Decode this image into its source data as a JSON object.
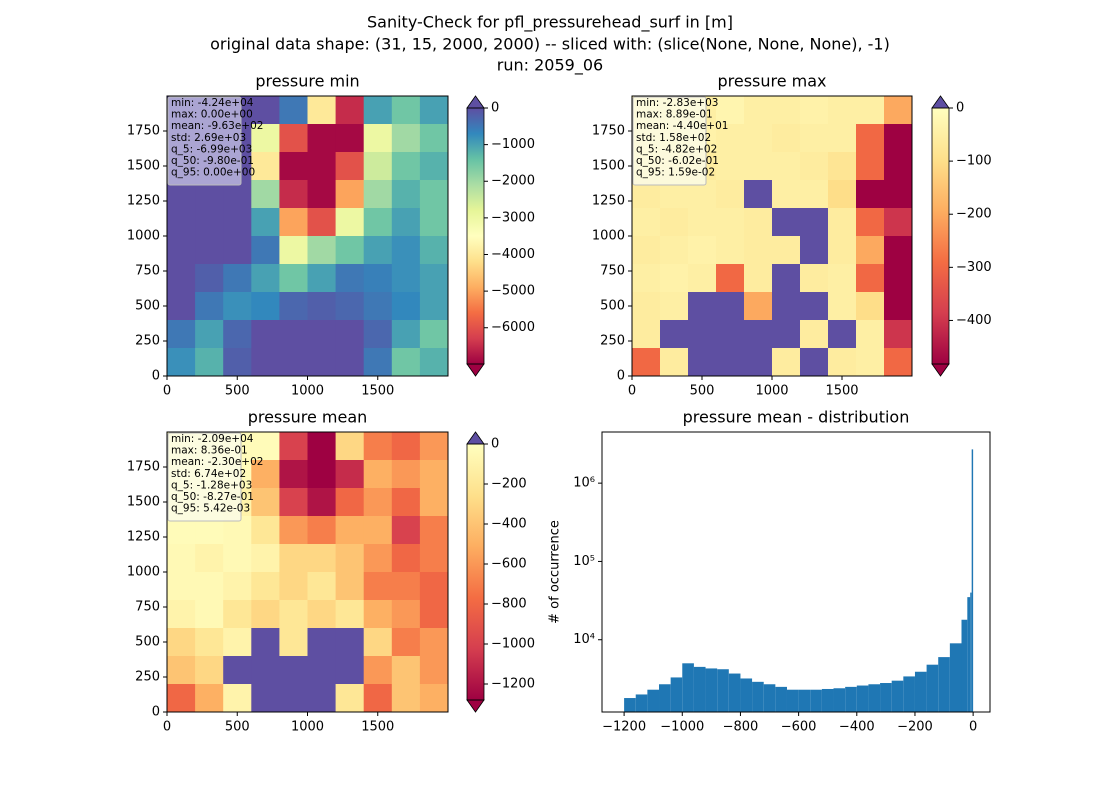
{
  "figure": {
    "title_lines": [
      "Sanity-Check for pfl_pressurehead_surf in [m]",
      "original data shape: (31, 15, 2000, 2000) -- sliced with: (slice(None, None, None), -1)",
      "run: 2059_06"
    ]
  },
  "chart_data": [
    {
      "type": "heatmap",
      "title": "pressure min",
      "values": [
        [
          0,
          0,
          0,
          0,
          -500,
          -4000,
          -6500,
          -1000,
          -1500,
          -1000
        ],
        [
          0,
          0,
          0,
          -3000,
          -6000,
          -6900,
          -6900,
          -3000,
          -2000,
          -1500
        ],
        [
          0,
          0,
          0,
          -4000,
          -6900,
          -6900,
          -6000,
          -2500,
          -1500,
          -1200
        ],
        [
          0,
          0,
          0,
          -2000,
          -6500,
          -6900,
          -5000,
          -2000,
          -1200,
          -1500
        ],
        [
          0,
          0,
          0,
          -1000,
          -5000,
          -6000,
          -3000,
          -1500,
          -1000,
          -1500
        ],
        [
          0,
          0,
          0,
          -500,
          -3000,
          -2000,
          -1500,
          -1000,
          -800,
          -1200
        ],
        [
          0,
          -200,
          -500,
          -1000,
          -1500,
          -1000,
          -500,
          -600,
          -800,
          -1000
        ],
        [
          0,
          -500,
          -800,
          -700,
          -300,
          -200,
          -300,
          -500,
          -700,
          -1000
        ],
        [
          -500,
          -1000,
          -300,
          0,
          0,
          0,
          0,
          -300,
          -1000,
          -1500
        ],
        [
          -800,
          -1200,
          -200,
          0,
          0,
          0,
          0,
          -500,
          -1500,
          -1200
        ]
      ],
      "xlim": [
        0,
        2000
      ],
      "ylim": [
        0,
        2000
      ],
      "xticks": [
        0,
        500,
        1000,
        1500
      ],
      "yticks": [
        0,
        250,
        500,
        750,
        1000,
        1250,
        1500,
        1750
      ],
      "clim": [
        -6990,
        0
      ],
      "colormap": [
        "#9e0142",
        "#d53e4f",
        "#f46d43",
        "#fdae61",
        "#fee08b",
        "#ffffbf",
        "#e6f598",
        "#abdda4",
        "#66c2a5",
        "#3288bd",
        "#5e4fa2"
      ],
      "over_color": "#5e4fa2",
      "under_color": "#9e0142",
      "cticks": [
        0,
        {
          "value": -1000,
          "label": "−1000"
        },
        {
          "value": -2000,
          "label": "−2000"
        },
        {
          "value": -3000,
          "label": "−3000"
        },
        {
          "value": -4000,
          "label": "−4000"
        },
        {
          "value": -5000,
          "label": "−5000"
        },
        {
          "value": -6000,
          "label": "−6000"
        }
      ],
      "stats": [
        "min: -4.24e+04",
        "max: 0.00e+00",
        "mean: -9.63e+02",
        "std: 2.69e+03",
        "q_5: -6.99e+03",
        "q_50: -9.80e-01",
        "q_95: 0.00e+00"
      ],
      "stats_bg": "#b8b4dc"
    },
    {
      "type": "heatmap",
      "title": "pressure max",
      "values": [
        [
          -50,
          -50,
          -50,
          -30,
          -50,
          -50,
          -40,
          -50,
          -50,
          -200
        ],
        [
          -50,
          -50,
          -40,
          -50,
          -50,
          -60,
          -50,
          -50,
          -300,
          -482
        ],
        [
          -50,
          -60,
          -60,
          -50,
          -50,
          -50,
          -60,
          -80,
          -300,
          -482
        ],
        [
          -60,
          -50,
          -50,
          -60,
          5,
          -50,
          -50,
          -100,
          -482,
          -482
        ],
        [
          -50,
          -60,
          -50,
          -50,
          -60,
          5,
          5,
          -60,
          -300,
          -400
        ],
        [
          -60,
          -50,
          -40,
          -50,
          -60,
          -60,
          5,
          -60,
          -200,
          -482
        ],
        [
          -50,
          -40,
          -50,
          -300,
          -60,
          5,
          -60,
          -50,
          -300,
          -482
        ],
        [
          -60,
          -50,
          5,
          5,
          -200,
          5,
          5,
          -50,
          -100,
          -482
        ],
        [
          -60,
          5,
          5,
          5,
          5,
          5,
          -60,
          5,
          -50,
          -400
        ],
        [
          -300,
          -60,
          5,
          5,
          5,
          -60,
          5,
          -60,
          -50,
          -300
        ]
      ],
      "xlim": [
        0,
        2000
      ],
      "ylim": [
        0,
        2000
      ],
      "xticks": [
        0,
        500,
        1000,
        1500
      ],
      "yticks": [
        0,
        250,
        500,
        750,
        1000,
        1250,
        1500,
        1750
      ],
      "clim": [
        -482,
        0
      ],
      "colormap": [
        "#9e0142",
        "#d53e4f",
        "#f46d43",
        "#fdae61",
        "#fee08b",
        "#ffffbf"
      ],
      "over_color": "#5e4fa2",
      "under_color": "#9e0142",
      "cticks": [
        0,
        {
          "value": -100,
          "label": "−100"
        },
        {
          "value": -200,
          "label": "−200"
        },
        {
          "value": -300,
          "label": "−300"
        },
        {
          "value": -400,
          "label": "−400"
        }
      ],
      "stats": [
        "min: -2.83e+03",
        "max: 8.89e-01",
        "mean: -4.40e+01",
        "std: 1.58e+02",
        "q_5: -4.82e+02",
        "q_50: -6.02e-01",
        "q_95: 1.59e-02"
      ],
      "stats_bg": "#fbfbe6"
    },
    {
      "type": "heatmap",
      "title": "pressure mean",
      "values": [
        [
          -30,
          -30,
          -30,
          -30,
          -1000,
          -1280,
          -300,
          -700,
          -800,
          -600
        ],
        [
          -30,
          -30,
          -30,
          -500,
          -1200,
          -1280,
          -1100,
          -500,
          -600,
          -500
        ],
        [
          -30,
          -30,
          -100,
          -400,
          -1000,
          -1200,
          -800,
          -600,
          -800,
          -500
        ],
        [
          -30,
          -30,
          -50,
          -200,
          -600,
          -700,
          -500,
          -500,
          -1000,
          -700
        ],
        [
          -50,
          -100,
          -50,
          -100,
          -300,
          -300,
          -400,
          -600,
          -800,
          -700
        ],
        [
          -50,
          -50,
          -100,
          -200,
          -300,
          -200,
          -400,
          -700,
          -700,
          -800
        ],
        [
          -100,
          -50,
          -200,
          -300,
          -200,
          -300,
          -200,
          -500,
          -600,
          -800
        ],
        [
          -300,
          -200,
          -100,
          5,
          -200,
          5,
          5,
          -300,
          -700,
          -600
        ],
        [
          -400,
          -300,
          5,
          5,
          5,
          5,
          5,
          -600,
          -400,
          -600
        ],
        [
          -800,
          -500,
          -100,
          5,
          5,
          5,
          -200,
          -800,
          -400,
          -500
        ]
      ],
      "xlim": [
        0,
        2000
      ],
      "ylim": [
        0,
        2000
      ],
      "xticks": [
        0,
        500,
        1000,
        1500
      ],
      "yticks": [
        0,
        250,
        500,
        750,
        1000,
        1250,
        1500,
        1750
      ],
      "clim": [
        -1280,
        0
      ],
      "colormap": [
        "#9e0142",
        "#d53e4f",
        "#f46d43",
        "#fdae61",
        "#fee08b",
        "#ffffbf"
      ],
      "over_color": "#5e4fa2",
      "under_color": "#9e0142",
      "cticks": [
        0,
        {
          "value": -200,
          "label": "−200"
        },
        {
          "value": -400,
          "label": "−400"
        },
        {
          "value": -600,
          "label": "−600"
        },
        {
          "value": -800,
          "label": "−800"
        },
        {
          "value": -1000,
          "label": "−1000"
        },
        {
          "value": -1200,
          "label": "−1200"
        }
      ],
      "stats": [
        "min: -2.09e+04",
        "max: 8.36e-01",
        "mean: -2.30e+02",
        "std: 6.74e+02",
        "q_5: -1.28e+03",
        "q_50: -8.27e-01",
        "q_95: 5.42e-03"
      ],
      "stats_bg": "#fbfbe6"
    },
    {
      "type": "histogram",
      "title": "pressure mean - distribution",
      "ylabel": "# of occurrence",
      "bins": [
        -1200,
        -1160,
        -1120,
        -1080,
        -1040,
        -1000,
        -960,
        -920,
        -880,
        -840,
        -800,
        -760,
        -720,
        -680,
        -640,
        -600,
        -560,
        -520,
        -480,
        -440,
        -400,
        -360,
        -320,
        -280,
        -240,
        -200,
        -160,
        -120,
        -80,
        -40,
        -20,
        -10,
        -5,
        0
      ],
      "counts": [
        1800,
        2000,
        2300,
        2700,
        3300,
        5000,
        4500,
        4300,
        4200,
        3700,
        3200,
        2900,
        2700,
        2500,
        2300,
        2300,
        2300,
        2350,
        2400,
        2500,
        2600,
        2700,
        2800,
        3000,
        3400,
        3900,
        4800,
        6000,
        9000,
        18000,
        35000,
        40000,
        2700000
      ],
      "color": "#1f77b4",
      "log_y": true,
      "xlim": [
        -1276,
        58
      ],
      "ylim": [
        1194,
        4500000
      ],
      "xticks": [
        {
          "value": -1200,
          "label": "−1200"
        },
        {
          "value": -1000,
          "label": "−1000"
        },
        {
          "value": -800,
          "label": "−800"
        },
        {
          "value": -600,
          "label": "−600"
        },
        {
          "value": -400,
          "label": "−400"
        },
        {
          "value": -200,
          "label": "−200"
        },
        0
      ],
      "yticks": [
        {
          "value": 10000,
          "label": "10⁴"
        },
        {
          "value": 100000,
          "label": "10⁵"
        },
        {
          "value": 1000000,
          "label": "10⁶"
        }
      ]
    }
  ]
}
